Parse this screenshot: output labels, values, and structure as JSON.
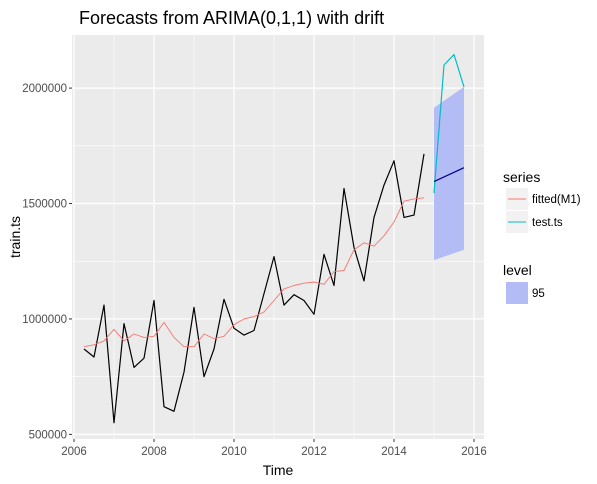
{
  "chart_data": {
    "type": "line",
    "title": "Forecasts from ARIMA(0,1,1) with drift",
    "xlabel": "Time",
    "ylabel": "train.ts",
    "xlim": [
      2005.95,
      2016.25
    ],
    "ylim": [
      480000,
      2230000
    ],
    "x_ticks": [
      2006,
      2008,
      2010,
      2012,
      2014,
      2016
    ],
    "x_tick_labels": [
      "2006",
      "2008",
      "2010",
      "2012",
      "2014",
      "2016"
    ],
    "y_ticks": [
      500000,
      1000000,
      1500000,
      2000000
    ],
    "y_tick_labels": [
      "500000",
      "1000000",
      "1500000",
      "2000000"
    ],
    "grid": true,
    "legend_position": "right",
    "colors": {
      "panel_bg": "#ebebeb",
      "grid": "#ffffff",
      "train": "#000000",
      "fitted": "#f8766d",
      "test": "#00bfc4",
      "forecast_mean": "#00008b",
      "ribbon": "#b3bcf5",
      "tick_label": "#4d4d4d",
      "legend_key_bg": "#f2f2f2"
    },
    "train": {
      "x": [
        2006.25,
        2006.5,
        2006.75,
        2007.0,
        2007.25,
        2007.5,
        2007.75,
        2008.0,
        2008.25,
        2008.5,
        2008.75,
        2009.0,
        2009.25,
        2009.5,
        2009.75,
        2010.0,
        2010.25,
        2010.5,
        2010.75,
        2011.0,
        2011.25,
        2011.5,
        2011.75,
        2012.0,
        2012.25,
        2012.5,
        2012.75,
        2013.0,
        2013.25,
        2013.5,
        2013.75,
        2014.0,
        2014.25,
        2014.5,
        2014.75
      ],
      "y": [
        870000,
        835000,
        1060000,
        550000,
        980000,
        790000,
        830000,
        1080000,
        620000,
        600000,
        770000,
        1050000,
        750000,
        870000,
        1085000,
        960000,
        930000,
        950000,
        1110000,
        1270000,
        1060000,
        1105000,
        1080000,
        1020000,
        1280000,
        1145000,
        1565000,
        1310000,
        1165000,
        1440000,
        1580000,
        1685000,
        1440000,
        1450000,
        1715000
      ]
    },
    "series": [
      {
        "name": "fitted(M1)",
        "x": [
          2006.25,
          2006.5,
          2006.75,
          2007.0,
          2007.25,
          2007.5,
          2007.75,
          2008.0,
          2008.25,
          2008.5,
          2008.75,
          2009.0,
          2009.25,
          2009.5,
          2009.75,
          2010.0,
          2010.25,
          2010.5,
          2010.75,
          2011.0,
          2011.25,
          2011.5,
          2011.75,
          2012.0,
          2012.25,
          2012.5,
          2012.75,
          2013.0,
          2013.25,
          2013.5,
          2013.75,
          2014.0,
          2014.25,
          2014.5,
          2014.75
        ],
        "y": [
          880000,
          888000,
          905000,
          955000,
          905000,
          935000,
          920000,
          925000,
          985000,
          920000,
          880000,
          880000,
          935000,
          915000,
          925000,
          975000,
          1000000,
          1010000,
          1030000,
          1080000,
          1130000,
          1145000,
          1155000,
          1160000,
          1150000,
          1205000,
          1210000,
          1300000,
          1330000,
          1315000,
          1360000,
          1420000,
          1510000,
          1520000,
          1525000
        ]
      },
      {
        "name": "test.ts",
        "x": [
          2015.0,
          2015.25,
          2015.5,
          2015.75
        ],
        "y": [
          1545000,
          2100000,
          2145000,
          2005000
        ]
      }
    ],
    "forecast": {
      "x": [
        2015.0,
        2015.75
      ],
      "mean": [
        1595000,
        1655000
      ],
      "lower95": [
        1255000,
        1300000
      ],
      "upper95": [
        1915000,
        2005000
      ]
    },
    "legend": {
      "series_title": "series",
      "series_entries": [
        "fitted(M1)",
        "test.ts"
      ],
      "level_title": "level",
      "level_entries": [
        "95"
      ]
    }
  }
}
